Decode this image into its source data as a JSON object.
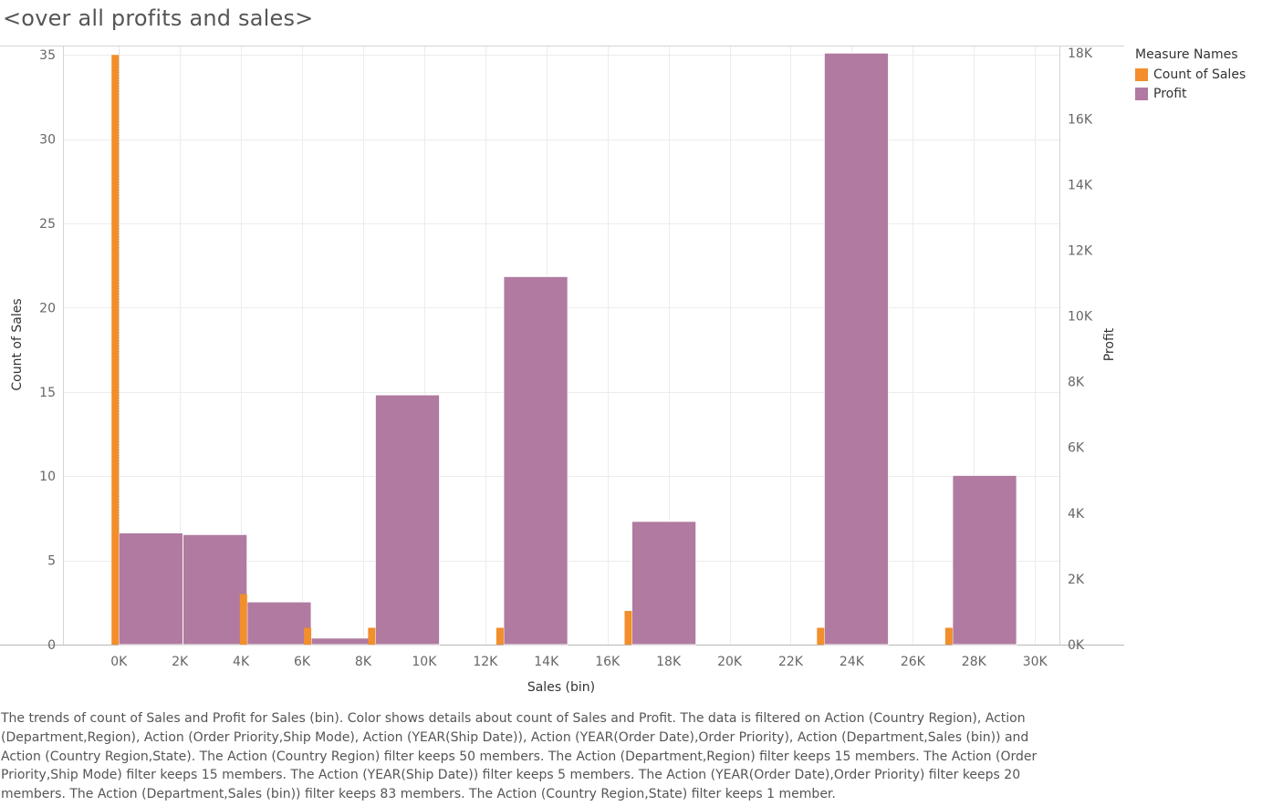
{
  "title": "<over all profits and sales>",
  "legend": {
    "title": "Measure Names",
    "items": [
      {
        "label": "Count of Sales",
        "color": "#f28e2b"
      },
      {
        "label": "Profit",
        "color": "#b07aa1"
      }
    ]
  },
  "caption": "The trends of count of Sales and Profit for Sales (bin).  Color shows details about count of Sales and Profit. The data is filtered on Action (Country Region), Action (Department,Region), Action (Order Priority,Ship Mode), Action (YEAR(Ship Date)), Action (YEAR(Order Date),Order Priority), Action (Department,Sales (bin)) and Action (Country Region,State). The Action (Country Region) filter keeps 50 members. The Action (Department,Region) filter keeps 15 members. The Action (Order Priority,Ship Mode) filter keeps 15 members. The Action (YEAR(Ship Date)) filter keeps 5 members. The Action (YEAR(Order Date),Order Priority) filter keeps 20 members. The Action (Department,Sales (bin)) filter keeps 83 members. The Action (Country Region,State) filter keeps 1 member.",
  "chart_data": {
    "type": "bar",
    "xlabel": "Sales (bin)",
    "ylabel": "Count of Sales",
    "y2label": "Profit",
    "xlim": [
      -1800,
      30800
    ],
    "ylim": [
      0,
      35.5
    ],
    "y2lim": [
      0,
      18200
    ],
    "bin_width": 2100,
    "x_ticks": [
      "0K",
      "2K",
      "4K",
      "6K",
      "8K",
      "10K",
      "12K",
      "14K",
      "16K",
      "18K",
      "20K",
      "22K",
      "24K",
      "26K",
      "28K",
      "30K"
    ],
    "x_tick_values": [
      0,
      2000,
      4000,
      6000,
      8000,
      10000,
      12000,
      14000,
      16000,
      18000,
      20000,
      22000,
      24000,
      26000,
      28000,
      30000
    ],
    "y_ticks": [
      "0",
      "5",
      "10",
      "15",
      "20",
      "25",
      "30",
      "35"
    ],
    "y_tick_values": [
      0,
      5,
      10,
      15,
      20,
      25,
      30,
      35
    ],
    "y2_ticks": [
      "0K",
      "2K",
      "4K",
      "6K",
      "8K",
      "10K",
      "12K",
      "14K",
      "16K",
      "18K"
    ],
    "y2_tick_values": [
      0,
      2000,
      4000,
      6000,
      8000,
      10000,
      12000,
      14000,
      16000,
      18000
    ],
    "grid": true,
    "legend_position": "top-right",
    "series": [
      {
        "name": "Count of Sales",
        "axis": "left",
        "color": "#f28e2b",
        "x": [
          0,
          4200,
          6300,
          8400,
          12600,
          16800,
          23100,
          27300
        ],
        "values": [
          35,
          3,
          1,
          1,
          1,
          2,
          1,
          1
        ]
      },
      {
        "name": "Profit",
        "axis": "right",
        "color": "#b07aa1",
        "x": [
          0,
          2100,
          4200,
          6300,
          8400,
          12600,
          16800,
          23100,
          27300
        ],
        "values": [
          3400,
          3350,
          1300,
          200,
          7600,
          11200,
          3750,
          18000,
          5150
        ]
      }
    ]
  }
}
